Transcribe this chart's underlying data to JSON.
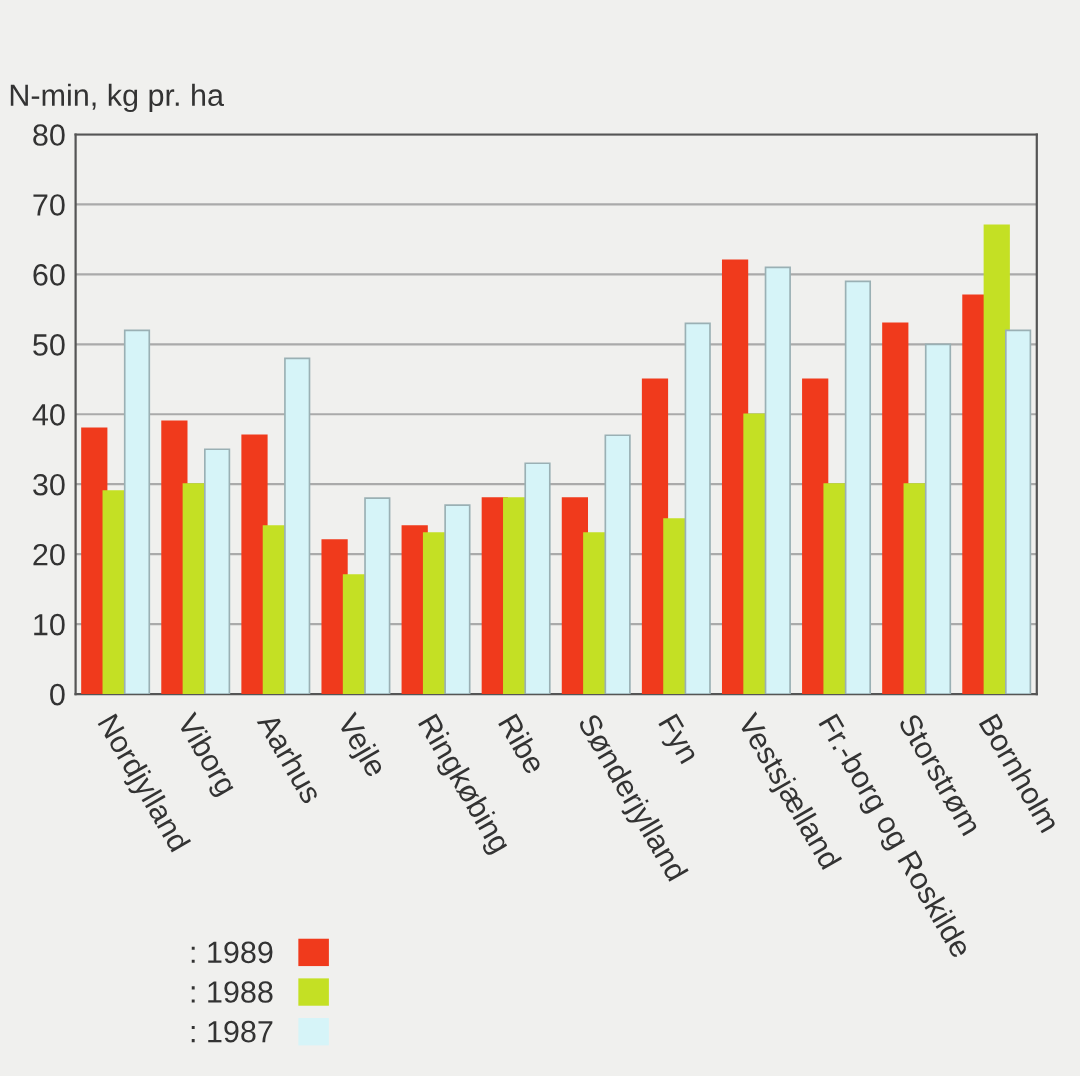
{
  "chart_data": {
    "type": "bar",
    "ylabel": "N-min, kg pr. ha",
    "categories": [
      "Nordjylland",
      "Viborg",
      "Aarhus",
      "Vejle",
      "Ringkøbing",
      "Ribe",
      "Sønderjylland",
      "Fyn",
      "Vestsjælland",
      "Fr.-borg og Roskilde",
      "Storstrøm",
      "Bornholm"
    ],
    "series": [
      {
        "name": ": 1989",
        "color": "#f03a1c",
        "values": [
          38,
          39,
          37,
          22,
          24,
          28,
          28,
          45,
          62,
          45,
          53,
          57
        ]
      },
      {
        "name": ": 1988",
        "color": "#c4e024",
        "values": [
          29,
          30,
          24,
          17,
          23,
          28,
          23,
          25,
          40,
          30,
          30,
          67
        ]
      },
      {
        "name": ": 1987",
        "color": "#d6f4f8",
        "values": [
          52,
          35,
          48,
          28,
          27,
          33,
          37,
          53,
          61,
          59,
          50,
          52
        ]
      }
    ],
    "ylim": [
      0,
      80
    ],
    "yticks": [
      0,
      10,
      20,
      30,
      40,
      50,
      60,
      70,
      80
    ],
    "grid": "y",
    "legend": "bottom left"
  }
}
